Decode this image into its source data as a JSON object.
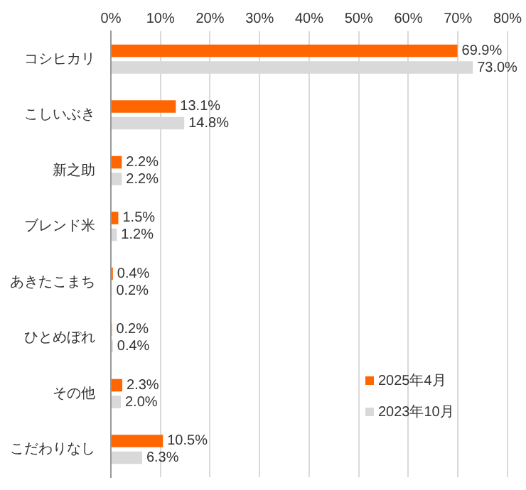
{
  "chart_data": {
    "type": "bar",
    "orientation": "horizontal",
    "categories": [
      "コシヒカリ",
      "こしいぶき",
      "新之助",
      "ブレンド米",
      "あきたこまち",
      "ひとめぼれ",
      "その他",
      "こだわりなし"
    ],
    "series": [
      {
        "name": "2025年4月",
        "color": "#ff6600",
        "values": [
          69.9,
          13.1,
          2.2,
          1.5,
          0.4,
          0.2,
          2.3,
          10.5
        ],
        "value_labels": [
          "69.9%",
          "13.1%",
          "2.2%",
          "1.5%",
          "0.4%",
          "0.2%",
          "2.3%",
          "10.5%"
        ]
      },
      {
        "name": "2023年10月",
        "color": "#d9d9d9",
        "values": [
          73.0,
          14.8,
          2.2,
          1.2,
          0.2,
          0.4,
          2.0,
          6.3
        ],
        "value_labels": [
          "73.0%",
          "14.8%",
          "2.2%",
          "1.2%",
          "0.2%",
          "0.4%",
          "2.0%",
          "6.3%"
        ]
      }
    ],
    "xlim": [
      0,
      80
    ],
    "xticks": [
      {
        "value": 0,
        "label": "0%"
      },
      {
        "value": 10,
        "label": "10%"
      },
      {
        "value": 20,
        "label": "20%"
      },
      {
        "value": 30,
        "label": "30%"
      },
      {
        "value": 40,
        "label": "40%"
      },
      {
        "value": 50,
        "label": "50%"
      },
      {
        "value": 60,
        "label": "60%"
      },
      {
        "value": 70,
        "label": "70%"
      },
      {
        "value": 80,
        "label": "80%"
      }
    ],
    "grid": "x",
    "legend": "bottom right"
  }
}
